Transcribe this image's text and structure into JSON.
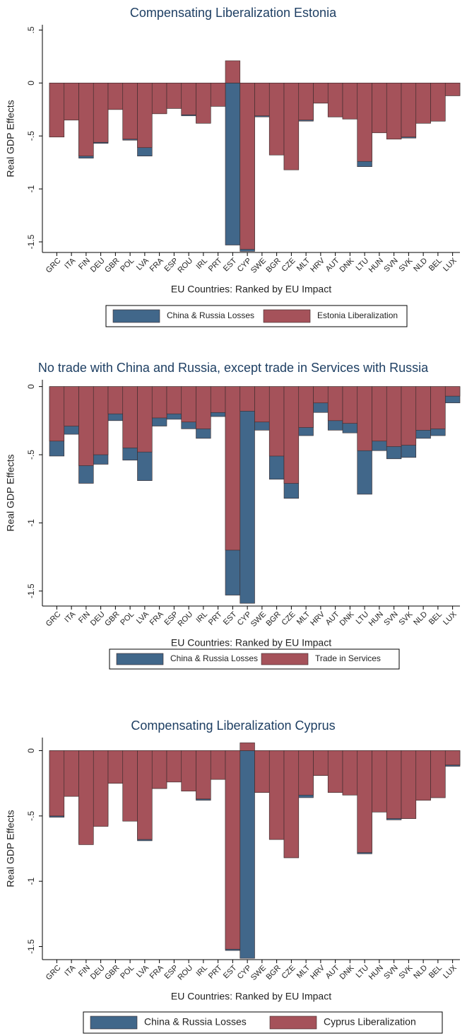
{
  "chart_data": [
    {
      "type": "bar",
      "barmode": "overlay",
      "title": "Compensating Liberalization Estonia",
      "y_label": "Real GDP Effects",
      "x_label": "EU Countries: Ranked by EU Impact",
      "categories": [
        "GRC",
        "ITA",
        "FIN",
        "DEU",
        "GBR",
        "POL",
        "LVA",
        "FRA",
        "ESP",
        "ROU",
        "IRL",
        "PRT",
        "EST",
        "CYP",
        "SWE",
        "BGR",
        "CZE",
        "MLT",
        "HRV",
        "AUT",
        "DNK",
        "LTU",
        "HUN",
        "SVN",
        "SVK",
        "NLD",
        "BEL",
        "LUX"
      ],
      "series": [
        {
          "name": "China & Russia Losses",
          "color": "#41678a",
          "values": [
            -0.51,
            -0.35,
            -0.71,
            -0.57,
            -0.25,
            -0.54,
            -0.69,
            -0.29,
            -0.24,
            -0.31,
            -0.38,
            -0.22,
            -1.53,
            -1.59,
            -0.32,
            -0.68,
            -0.82,
            -0.36,
            -0.19,
            -0.32,
            -0.34,
            -0.79,
            -0.47,
            -0.53,
            -0.52,
            -0.38,
            -0.36,
            -0.12
          ]
        },
        {
          "name": "Estonia Liberalization",
          "color": "#a5525a",
          "values": [
            -0.51,
            -0.35,
            -0.69,
            -0.56,
            -0.25,
            -0.53,
            -0.61,
            -0.29,
            -0.24,
            -0.3,
            -0.38,
            -0.22,
            0.21,
            -1.57,
            -0.31,
            -0.68,
            -0.82,
            -0.35,
            -0.19,
            -0.32,
            -0.34,
            -0.74,
            -0.47,
            -0.53,
            -0.51,
            -0.38,
            -0.36,
            -0.12
          ]
        }
      ],
      "ylim": [
        -1.6,
        0.55
      ],
      "yticks": [
        {
          "value": 0.5,
          "label": ".5"
        },
        0,
        {
          "value": -0.5,
          "label": "-.5"
        },
        -1,
        -1.5
      ]
    },
    {
      "type": "bar",
      "barmode": "overlay",
      "title": "No trade with China and Russia, except trade in Services with Russia",
      "y_label": "Real GDP Effects",
      "x_label": "EU Countries: Ranked by EU Impact",
      "categories": [
        "GRC",
        "ITA",
        "FIN",
        "DEU",
        "GBR",
        "POL",
        "LVA",
        "FRA",
        "ESP",
        "ROU",
        "IRL",
        "PRT",
        "EST",
        "CYP",
        "SWE",
        "BGR",
        "CZE",
        "MLT",
        "HRV",
        "AUT",
        "DNK",
        "LTU",
        "HUN",
        "SVN",
        "SVK",
        "NLD",
        "BEL",
        "LUX"
      ],
      "series": [
        {
          "name": "China & Russia Losses",
          "color": "#41678a",
          "values": [
            -0.51,
            -0.35,
            -0.71,
            -0.57,
            -0.25,
            -0.54,
            -0.69,
            -0.29,
            -0.24,
            -0.31,
            -0.38,
            -0.22,
            -1.53,
            -1.59,
            -0.32,
            -0.68,
            -0.82,
            -0.36,
            -0.19,
            -0.32,
            -0.34,
            -0.79,
            -0.47,
            -0.53,
            -0.52,
            -0.38,
            -0.36,
            -0.12
          ]
        },
        {
          "name": "Trade in Services",
          "color": "#a5525a",
          "values": [
            -0.4,
            -0.29,
            -0.58,
            -0.5,
            -0.2,
            -0.45,
            -0.48,
            -0.23,
            -0.2,
            -0.26,
            -0.31,
            -0.19,
            -1.2,
            -0.18,
            -0.26,
            -0.51,
            -0.71,
            -0.3,
            -0.12,
            -0.25,
            -0.27,
            -0.47,
            -0.4,
            -0.44,
            -0.43,
            -0.32,
            -0.31,
            -0.07
          ]
        }
      ],
      "ylim": [
        -1.61,
        0.05
      ],
      "yticks": [
        0,
        {
          "value": -0.5,
          "label": "-.5"
        },
        -1,
        -1.5
      ]
    },
    {
      "type": "bar",
      "barmode": "overlay",
      "title": "Compensating Liberalization Cyprus",
      "y_label": "Real GDP Effects",
      "x_label": "EU Countries: Ranked by EU Impact",
      "categories": [
        "GRC",
        "ITA",
        "FIN",
        "DEU",
        "GBR",
        "POL",
        "LVA",
        "FRA",
        "ESP",
        "ROU",
        "IRL",
        "PRT",
        "EST",
        "CYP",
        "SWE",
        "BGR",
        "CZE",
        "MLT",
        "HRV",
        "AUT",
        "DNK",
        "LTU",
        "HUN",
        "SVN",
        "SVK",
        "NLD",
        "BEL",
        "LUX"
      ],
      "series": [
        {
          "name": "China & Russia Losses",
          "color": "#41678a",
          "values": [
            -0.51,
            -0.35,
            -0.71,
            -0.57,
            -0.25,
            -0.54,
            -0.69,
            -0.29,
            -0.24,
            -0.31,
            -0.38,
            -0.22,
            -1.53,
            -1.59,
            -0.32,
            -0.68,
            -0.82,
            -0.36,
            -0.19,
            -0.32,
            -0.34,
            -0.79,
            -0.47,
            -0.53,
            -0.52,
            -0.38,
            -0.36,
            -0.12
          ]
        },
        {
          "name": "Cyprus Liberalization",
          "color": "#a5525a",
          "values": [
            -0.5,
            -0.35,
            -0.72,
            -0.58,
            -0.25,
            -0.54,
            -0.68,
            -0.29,
            -0.24,
            -0.31,
            -0.37,
            -0.22,
            -1.52,
            0.06,
            -0.32,
            -0.68,
            -0.82,
            -0.34,
            -0.19,
            -0.32,
            -0.34,
            -0.78,
            -0.47,
            -0.52,
            -0.52,
            -0.38,
            -0.36,
            -0.11
          ]
        }
      ],
      "ylim": [
        -1.6,
        0.1
      ],
      "yticks": [
        0,
        {
          "value": -0.5,
          "label": "-.5"
        },
        -1,
        -1.5
      ]
    }
  ]
}
